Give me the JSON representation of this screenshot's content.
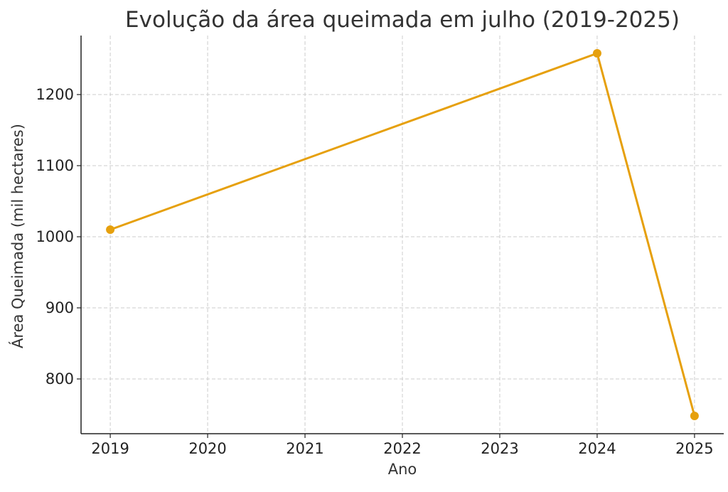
{
  "chart_data": {
    "type": "line",
    "title": "Evolução da área queimada em julho (2019-2025)",
    "xlabel": "Ano",
    "ylabel": "Área Queimada (mil hectares)",
    "x": [
      2019,
      2024,
      2025
    ],
    "x_ticks": [
      "2019",
      "2020",
      "2021",
      "2022",
      "2023",
      "2024",
      "2025"
    ],
    "y_ticks": [
      "800",
      "900",
      "1000",
      "1100",
      "1200"
    ],
    "series": [
      {
        "values": [
          1010,
          1258,
          748
        ],
        "color": "#e6a00d",
        "marker": "circle"
      }
    ],
    "xlim": [
      2018.7,
      2025.3
    ],
    "ylim": [
      723,
      1283
    ],
    "grid": true,
    "grid_style": "dashed",
    "legend": "none"
  }
}
